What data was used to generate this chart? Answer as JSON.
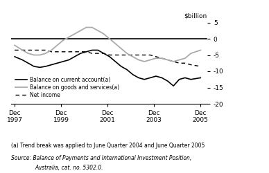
{
  "ylabel": "$billion",
  "ylim": [
    -20,
    5
  ],
  "yticks": [
    5,
    0,
    -5,
    -10,
    -15,
    -20
  ],
  "xlim": [
    1997.75,
    2006.2
  ],
  "xtick_positions": [
    1997.917,
    1999.917,
    2001.917,
    2003.917,
    2005.917
  ],
  "xtick_labels": [
    "Dec\n1997",
    "Dec\n1999",
    "Dec\n2001",
    "Dec\n2003",
    "Dec\n2005"
  ],
  "current_account_x": [
    1997.917,
    1998.25,
    1998.5,
    1998.75,
    1999.0,
    1999.25,
    1999.5,
    1999.75,
    2000.0,
    2000.25,
    2000.5,
    2000.75,
    2001.0,
    2001.25,
    2001.5,
    2001.75,
    2002.0,
    2002.25,
    2002.5,
    2002.75,
    2003.0,
    2003.25,
    2003.5,
    2003.75,
    2004.0,
    2004.25,
    2004.5,
    2004.75,
    2005.0,
    2005.25,
    2005.5,
    2005.917
  ],
  "current_account_y": [
    -5.5,
    -6.5,
    -7.5,
    -8.5,
    -8.8,
    -8.5,
    -8.0,
    -7.5,
    -7.0,
    -6.5,
    -5.5,
    -4.5,
    -4.0,
    -3.5,
    -3.5,
    -4.5,
    -5.5,
    -7.0,
    -8.5,
    -9.5,
    -11.0,
    -12.0,
    -12.5,
    -12.0,
    -11.5,
    -12.0,
    -13.0,
    -14.5,
    -12.5,
    -12.0,
    -12.5,
    -12.0
  ],
  "goods_services_x": [
    1997.917,
    1998.25,
    1998.5,
    1998.75,
    1999.0,
    1999.25,
    1999.5,
    1999.75,
    2000.0,
    2000.25,
    2000.5,
    2000.75,
    2001.0,
    2001.25,
    2001.5,
    2001.75,
    2002.0,
    2002.25,
    2002.5,
    2002.75,
    2003.0,
    2003.25,
    2003.5,
    2003.75,
    2004.0,
    2004.25,
    2004.5,
    2004.75,
    2005.0,
    2005.25,
    2005.5,
    2005.917
  ],
  "goods_services_y": [
    -2.0,
    -3.5,
    -4.5,
    -5.0,
    -5.0,
    -4.5,
    -3.5,
    -2.0,
    -0.5,
    0.5,
    1.5,
    2.5,
    3.5,
    3.5,
    2.5,
    1.5,
    0.0,
    -1.5,
    -3.0,
    -4.5,
    -5.5,
    -6.5,
    -7.0,
    -6.5,
    -6.0,
    -6.0,
    -6.5,
    -7.0,
    -6.5,
    -6.0,
    -4.5,
    -3.5
  ],
  "net_income_x": [
    1997.917,
    1998.25,
    1998.5,
    1998.75,
    1999.0,
    1999.25,
    1999.5,
    1999.75,
    2000.0,
    2000.25,
    2000.5,
    2000.75,
    2001.0,
    2001.25,
    2001.5,
    2001.75,
    2002.0,
    2002.25,
    2002.5,
    2002.75,
    2003.0,
    2003.25,
    2003.5,
    2003.75,
    2004.0,
    2004.25,
    2004.5,
    2004.75,
    2005.0,
    2005.25,
    2005.5,
    2005.917
  ],
  "net_income_y": [
    -3.5,
    -3.5,
    -3.5,
    -3.5,
    -3.5,
    -3.5,
    -4.0,
    -4.0,
    -4.0,
    -4.0,
    -4.0,
    -4.0,
    -4.0,
    -4.5,
    -4.5,
    -4.5,
    -5.0,
    -5.0,
    -5.0,
    -5.0,
    -5.0,
    -5.0,
    -5.0,
    -5.0,
    -5.5,
    -6.0,
    -6.5,
    -7.0,
    -7.5,
    -7.5,
    -8.0,
    -8.5
  ],
  "current_account_color": "#000000",
  "goods_services_color": "#aaaaaa",
  "net_income_color": "#000000",
  "zero_line_color": "#000000",
  "legend_entries": [
    "Balance on current account(a)",
    "Balance on goods and services(a)",
    "Net income"
  ],
  "footnote": "(a) Trend break was applied to June Quarter 2004 and June Quarter 2005",
  "source_line1": "Source: Balance of Payments and International Investment Position,",
  "source_line2": "Australia, cat. no. 5302.0."
}
